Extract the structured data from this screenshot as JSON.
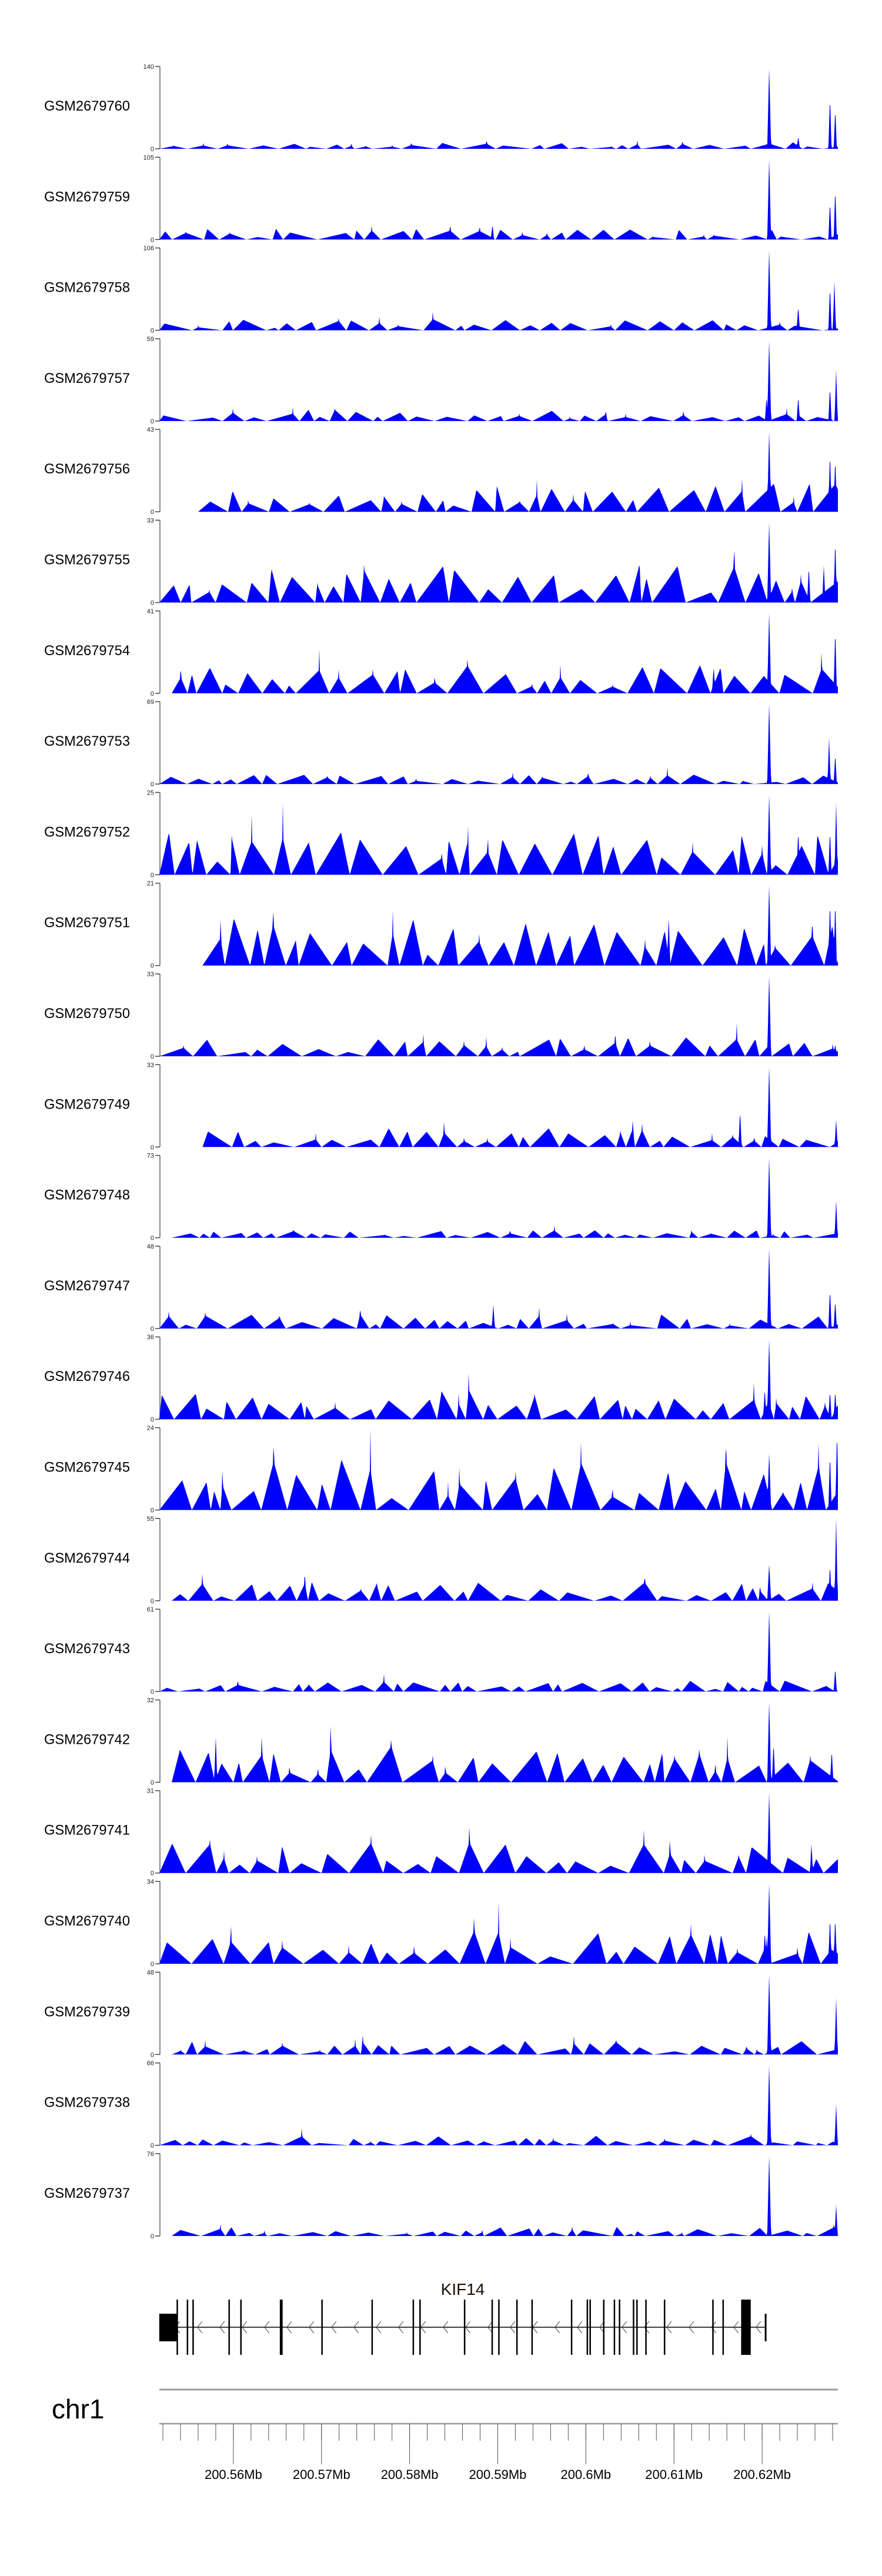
{
  "colors": {
    "coverage": "#0000ff",
    "axis": "#888888",
    "gene": "#000000",
    "chromosome": "#999999"
  },
  "chart_data": {
    "type": "area",
    "title": "",
    "xlabel": "",
    "chromosome": "chr1",
    "xlim_mb": [
      200.5516,
      200.6286
    ],
    "x_ticks": [
      {
        "value": 200.56,
        "label": "200.56Mb"
      },
      {
        "value": 200.57,
        "label": "200.57Mb"
      },
      {
        "value": 200.58,
        "label": "200.58Mb"
      },
      {
        "value": 200.59,
        "label": "200.59Mb"
      },
      {
        "value": 200.6,
        "label": "200.6Mb"
      },
      {
        "value": 200.61,
        "label": "200.61Mb"
      },
      {
        "value": 200.62,
        "label": "200.62Mb"
      }
    ],
    "minor_tick_step_mb": 0.002,
    "tracks": [
      {
        "name": "GSM2679760",
        "ymax": 140,
        "ymin_label": "0",
        "ymax_label": "140",
        "background_level": 0.08,
        "start_mb": 200.5516,
        "peaks": [
          [
            200.6208,
            140
          ],
          [
            200.6277,
            91
          ],
          [
            200.6283,
            70
          ],
          [
            200.6241,
            22
          ]
        ]
      },
      {
        "name": "GSM2679759",
        "ymax": 105,
        "ymin_label": "0",
        "ymax_label": "105",
        "background_level": 0.12,
        "start_mb": 200.5516,
        "peaks": [
          [
            200.6208,
            105
          ],
          [
            200.6277,
            50
          ],
          [
            200.6283,
            67
          ],
          [
            200.5894,
            20
          ]
        ]
      },
      {
        "name": "GSM2679758",
        "ymax": 106,
        "ymin_label": "0",
        "ymax_label": "106",
        "background_level": 0.12,
        "start_mb": 200.5516,
        "peaks": [
          [
            200.6208,
            106
          ],
          [
            200.6277,
            58
          ],
          [
            200.6282,
            63
          ],
          [
            200.6241,
            32
          ]
        ]
      },
      {
        "name": "GSM2679757",
        "ymax": 59,
        "ymin_label": "0",
        "ymax_label": "59",
        "background_level": 0.12,
        "start_mb": 200.5516,
        "peaks": [
          [
            200.6208,
            59
          ],
          [
            200.6205,
            18
          ],
          [
            200.6277,
            25
          ],
          [
            200.6284,
            37
          ],
          [
            200.6241,
            18
          ]
        ]
      },
      {
        "name": "GSM2679756",
        "ymax": 43,
        "ymin_label": "0",
        "ymax_label": "43",
        "background_level": 0.3,
        "start_mb": 200.556,
        "peaks": [
          [
            200.6208,
            43
          ],
          [
            200.6277,
            32
          ],
          [
            200.6283,
            29
          ],
          [
            200.6213,
            16
          ]
        ]
      },
      {
        "name": "GSM2679755",
        "ymax": 33,
        "ymin_label": "0",
        "ymax_label": "33",
        "background_level": 0.4,
        "start_mb": 200.5516,
        "peaks": [
          [
            200.6208,
            33
          ],
          [
            200.6283,
            26
          ],
          [
            200.6253,
            15
          ],
          [
            200.627,
            15
          ]
        ]
      },
      {
        "name": "GSM2679754",
        "ymax": 41,
        "ymin_label": "0",
        "ymax_label": "41",
        "background_level": 0.3,
        "start_mb": 200.553,
        "peaks": [
          [
            200.6208,
            41
          ],
          [
            200.6283,
            33
          ],
          [
            200.6145,
            14
          ]
        ]
      },
      {
        "name": "GSM2679753",
        "ymax": 69,
        "ymin_label": "0",
        "ymax_label": "69",
        "background_level": 0.1,
        "start_mb": 200.5516,
        "peaks": [
          [
            200.6208,
            69
          ],
          [
            200.6276,
            39
          ],
          [
            200.6283,
            26
          ]
        ]
      },
      {
        "name": "GSM2679752",
        "ymax": 25,
        "ymin_label": "0",
        "ymax_label": "25",
        "background_level": 0.45,
        "start_mb": 200.5516,
        "peaks": [
          [
            200.6208,
            25
          ],
          [
            200.6277,
            14
          ],
          [
            200.6284,
            22
          ],
          [
            200.6241,
            14
          ]
        ]
      },
      {
        "name": "GSM2679751",
        "ymax": 21,
        "ymin_label": "0",
        "ymax_label": "21",
        "background_level": 0.5,
        "start_mb": 200.5565,
        "peaks": [
          [
            200.6208,
            21
          ],
          [
            200.6277,
            17
          ],
          [
            200.6283,
            17
          ],
          [
            200.6094,
            13
          ]
        ]
      },
      {
        "name": "GSM2679750",
        "ymax": 33,
        "ymin_label": "0",
        "ymax_label": "33",
        "background_level": 0.2,
        "start_mb": 200.5516,
        "peaks": [
          [
            200.6208,
            33
          ],
          [
            200.6283,
            5
          ]
        ]
      },
      {
        "name": "GSM2679749",
        "ymax": 33,
        "ymin_label": "0",
        "ymax_label": "33",
        "background_level": 0.2,
        "start_mb": 200.5565,
        "peaks": [
          [
            200.6208,
            33
          ],
          [
            200.6175,
            15
          ],
          [
            200.6284,
            11
          ]
        ]
      },
      {
        "name": "GSM2679748",
        "ymax": 73,
        "ymin_label": "0",
        "ymax_label": "73",
        "background_level": 0.08,
        "start_mb": 200.553,
        "peaks": [
          [
            200.6208,
            73
          ],
          [
            200.6284,
            33
          ]
        ]
      },
      {
        "name": "GSM2679747",
        "ymax": 48,
        "ymin_label": "0",
        "ymax_label": "48",
        "background_level": 0.15,
        "start_mb": 200.5516,
        "peaks": [
          [
            200.6208,
            48
          ],
          [
            200.6277,
            24
          ],
          [
            200.6283,
            17
          ],
          [
            200.5895,
            14
          ]
        ]
      },
      {
        "name": "GSM2679746",
        "ymax": 36,
        "ymin_label": "0",
        "ymax_label": "36",
        "background_level": 0.35,
        "start_mb": 200.5516,
        "peaks": [
          [
            200.6208,
            36
          ],
          [
            200.6203,
            14
          ],
          [
            200.6277,
            13
          ],
          [
            200.6283,
            13
          ]
        ]
      },
      {
        "name": "GSM2679745",
        "ymax": 24,
        "ymin_label": "0",
        "ymax_label": "24",
        "background_level": 0.55,
        "start_mb": 200.5516,
        "peaks": [
          [
            200.6208,
            17
          ],
          [
            200.6277,
            17
          ],
          [
            200.6285,
            24
          ]
        ]
      },
      {
        "name": "GSM2679744",
        "ymax": 55,
        "ymin_label": "0",
        "ymax_label": "55",
        "background_level": 0.2,
        "start_mb": 200.553,
        "peaks": [
          [
            200.6208,
            25
          ],
          [
            200.6277,
            25
          ],
          [
            200.6284,
            55
          ]
        ]
      },
      {
        "name": "GSM2679743",
        "ymax": 61,
        "ymin_label": "0",
        "ymax_label": "61",
        "background_level": 0.12,
        "start_mb": 200.5516,
        "peaks": [
          [
            200.6208,
            61
          ],
          [
            200.6283,
            18
          ]
        ]
      },
      {
        "name": "GSM2679742",
        "ymax": 32,
        "ymin_label": "0",
        "ymax_label": "32",
        "background_level": 0.4,
        "start_mb": 200.553,
        "peaks": [
          [
            200.6208,
            32
          ],
          [
            200.6213,
            16
          ],
          [
            200.6279,
            13
          ],
          [
            200.558,
            18
          ]
        ]
      },
      {
        "name": "GSM2679741",
        "ymax": 31,
        "ymin_label": "0",
        "ymax_label": "31",
        "background_level": 0.35,
        "start_mb": 200.5516,
        "peaks": [
          [
            200.6208,
            31
          ],
          [
            200.6256,
            11
          ],
          [
            200.6285,
            6
          ]
        ]
      },
      {
        "name": "GSM2679740",
        "ymax": 34,
        "ymin_label": "0",
        "ymax_label": "34",
        "background_level": 0.35,
        "start_mb": 200.5516,
        "peaks": [
          [
            200.6208,
            34
          ],
          [
            200.6277,
            20
          ],
          [
            200.6283,
            20
          ],
          [
            200.6203,
            14
          ]
        ]
      },
      {
        "name": "GSM2679739",
        "ymax": 48,
        "ymin_label": "0",
        "ymax_label": "48",
        "background_level": 0.15,
        "start_mb": 200.553,
        "peaks": [
          [
            200.6208,
            48
          ],
          [
            200.6284,
            33
          ]
        ]
      },
      {
        "name": "GSM2679738",
        "ymax": 66,
        "ymin_label": "0",
        "ymax_label": "66",
        "background_level": 0.1,
        "start_mb": 200.5516,
        "peaks": [
          [
            200.6208,
            66
          ],
          [
            200.6284,
            33
          ]
        ]
      },
      {
        "name": "GSM2679737",
        "ymax": 76,
        "ymin_label": "0",
        "ymax_label": "76",
        "background_level": 0.1,
        "start_mb": 200.553,
        "peaks": [
          [
            200.6208,
            76
          ],
          [
            200.6284,
            29
          ]
        ]
      }
    ],
    "gene": {
      "name": "KIF14",
      "strand": "-",
      "start_mb": 200.55159,
      "end_mb": 200.62044,
      "utr_blocks_mb": [
        [
          200.55159,
          200.55364
        ],
        [
          200.6203,
          200.62044
        ]
      ],
      "exons_mb": [
        [
          200.55355,
          200.5537
        ],
        [
          200.55479,
          200.55479
        ],
        [
          200.55543,
          200.55543
        ],
        [
          200.55952,
          200.55952
        ],
        [
          200.56086,
          200.56086
        ],
        [
          200.56527,
          200.56559
        ],
        [
          200.57006,
          200.57006
        ],
        [
          200.57575,
          200.57575
        ],
        [
          200.58042,
          200.58042
        ],
        [
          200.58118,
          200.58118
        ],
        [
          200.58624,
          200.58624
        ],
        [
          200.58937,
          200.58937
        ],
        [
          200.59013,
          200.59013
        ],
        [
          200.59218,
          200.59218
        ],
        [
          200.5939,
          200.5939
        ],
        [
          200.59838,
          200.59838
        ],
        [
          200.60017,
          200.60017
        ],
        [
          200.60049,
          200.60049
        ],
        [
          200.60203,
          200.60203
        ],
        [
          200.60324,
          200.60324
        ],
        [
          200.60382,
          200.60382
        ],
        [
          200.60541,
          200.60541
        ],
        [
          200.6058,
          200.6058
        ],
        [
          200.60682,
          200.60682
        ],
        [
          200.60893,
          200.60893
        ],
        [
          200.61442,
          200.61442
        ],
        [
          200.61558,
          200.61558
        ],
        [
          200.61762,
          200.61871
        ]
      ]
    }
  }
}
